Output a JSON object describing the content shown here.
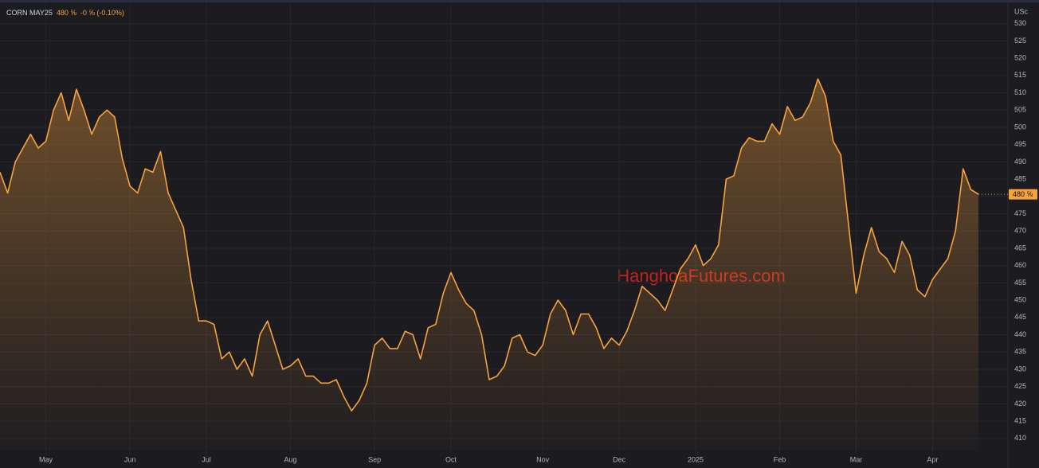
{
  "chart_data": {
    "type": "area",
    "symbol": "CORN MAY25",
    "last_label": "480 ⅝",
    "change_label": "-0 ⅝ (-0.10%)",
    "unit": "USc",
    "watermark": "HanghoaFutures.com",
    "color": "#f7a23c",
    "grid": true,
    "categories": [
      null,
      null,
      null,
      null,
      null,
      null,
      "May",
      null,
      null,
      null,
      null,
      null,
      null,
      null,
      null,
      null,
      null,
      "Jun",
      null,
      null,
      null,
      null,
      null,
      null,
      null,
      null,
      null,
      "Jul",
      null,
      null,
      null,
      null,
      null,
      null,
      null,
      null,
      null,
      null,
      "Aug",
      null,
      null,
      null,
      null,
      null,
      null,
      null,
      null,
      null,
      null,
      "Sep",
      null,
      null,
      null,
      null,
      null,
      null,
      null,
      null,
      null,
      "Oct",
      null,
      null,
      null,
      null,
      null,
      null,
      null,
      null,
      null,
      null,
      null,
      "Nov",
      null,
      null,
      null,
      null,
      null,
      null,
      null,
      null,
      null,
      "Dec",
      null,
      null,
      null,
      null,
      null,
      null,
      null,
      null,
      null,
      "2025",
      null,
      null,
      null,
      null,
      null,
      null,
      null,
      null,
      null,
      null,
      "Feb",
      null,
      null,
      null,
      null,
      null,
      null,
      null,
      null,
      null,
      "Mar",
      null,
      null,
      null,
      null,
      null,
      null,
      null,
      null,
      null,
      "Apr",
      null,
      null,
      null,
      null,
      null,
      null
    ],
    "values": [
      487,
      481,
      490,
      494,
      498,
      494,
      496,
      505,
      510,
      502,
      511,
      505,
      498,
      503,
      505,
      503,
      491,
      483,
      481,
      488,
      487,
      493,
      481,
      476,
      471,
      456,
      444,
      444,
      443,
      433,
      435,
      430,
      433,
      428,
      440,
      444,
      437,
      430,
      431,
      433,
      428,
      428,
      426,
      426,
      427,
      422,
      418,
      421,
      426,
      437,
      439,
      436,
      436,
      441,
      440,
      433,
      442,
      443,
      452,
      458,
      453,
      449,
      447,
      440,
      427,
      428,
      431,
      439,
      440,
      435,
      434,
      437,
      446,
      450,
      447,
      440,
      446,
      446,
      442,
      436,
      439,
      437,
      441,
      447,
      454,
      452,
      450,
      447,
      453,
      459,
      462,
      466,
      460,
      462,
      466,
      485,
      486,
      494,
      497,
      496,
      496,
      501,
      498,
      506,
      502,
      503,
      507,
      514,
      509,
      496,
      492,
      472,
      452,
      463,
      471,
      464,
      462,
      458,
      467,
      463,
      453,
      451,
      456,
      459,
      462,
      470,
      488,
      482,
      480.625
    ],
    "value_labels": [
      null,
      null,
      null,
      null,
      null,
      null,
      null,
      null,
      null,
      null,
      null,
      null,
      null,
      null,
      null,
      null,
      null,
      null,
      null,
      null,
      null,
      null,
      null,
      null,
      null,
      null,
      null,
      null,
      null,
      null,
      null,
      null,
      null,
      null,
      null,
      null,
      null,
      null,
      null,
      null,
      null,
      null,
      null,
      null,
      null,
      null,
      null,
      null,
      null,
      null,
      null,
      null,
      null,
      null,
      null,
      null,
      null,
      null,
      null,
      null,
      null,
      null,
      null,
      null,
      null,
      null,
      null,
      null,
      null,
      null,
      null,
      null,
      null,
      null,
      null,
      null,
      null,
      null,
      null,
      null,
      null,
      null,
      null,
      null,
      null,
      null,
      null,
      null,
      null,
      null,
      null,
      null,
      null,
      null,
      null,
      null,
      null,
      null,
      null,
      null,
      null,
      null,
      null,
      null,
      null,
      null,
      null,
      null,
      null,
      null,
      null,
      null,
      null,
      null,
      null,
      null,
      null,
      null,
      null,
      null,
      null,
      null,
      null,
      null,
      null,
      null,
      null,
      null,
      "480 ⅝"
    ],
    "ylim": [
      406.5,
      535
    ],
    "yticks": [
      410,
      415,
      420,
      425,
      430,
      435,
      440,
      445,
      450,
      455,
      460,
      465,
      470,
      475,
      480,
      485,
      490,
      495,
      500,
      505,
      510,
      515,
      520,
      525,
      530
    ]
  }
}
